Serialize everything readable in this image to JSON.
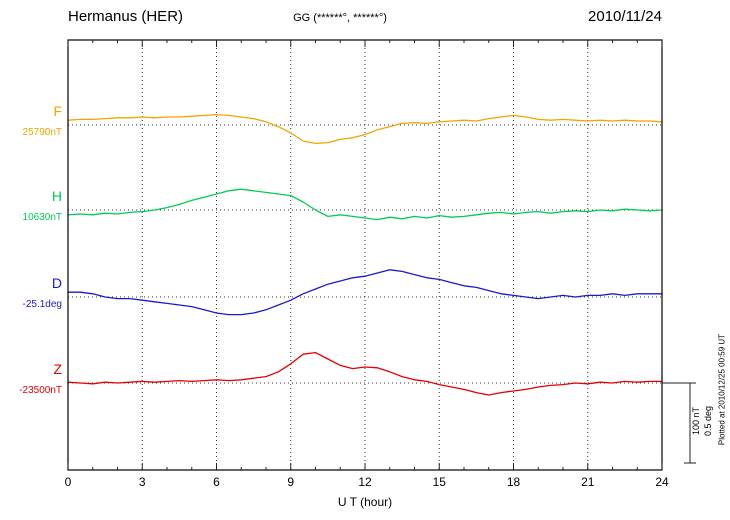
{
  "header": {
    "station": "Hermanus (HER)",
    "gg": "GG (******°, ******°)",
    "date": "2010/11/24"
  },
  "scalebar": {
    "nt": "100 nT",
    "deg": "0.5 deg"
  },
  "footer_note": "Plotted at 2010/12/25 00:59 UT",
  "chart_data": {
    "type": "line",
    "title": "Hermanus (HER) magnetogram",
    "xlabel": "U T (hour)",
    "x_range": [
      0,
      24
    ],
    "x_ticks": [
      0,
      3,
      6,
      9,
      12,
      15,
      18,
      21,
      24
    ],
    "x_minor_tick_step": 1,
    "grid": "dotted vertical lines every 3 h; dotted horizontal baseline per channel",
    "legend_position": "left margin channel labels",
    "values_are": "offsets from channel baseline, nT for F/H/Z and deg for D",
    "scale_reference": {
      "nT_per_bar": 100,
      "deg_per_bar": 0.5
    },
    "x": [
      0,
      0.5,
      1,
      1.5,
      2,
      2.5,
      3,
      3.5,
      4,
      4.5,
      5,
      5.5,
      6,
      6.5,
      7,
      7.5,
      8,
      8.5,
      9,
      9.5,
      10,
      10.5,
      11,
      11.5,
      12,
      12.5,
      13,
      13.5,
      14,
      14.5,
      15,
      15.5,
      16,
      16.5,
      17,
      17.5,
      18,
      18.5,
      19,
      19.5,
      20,
      20.5,
      21,
      21.5,
      22,
      22.5,
      23,
      23.5,
      24
    ],
    "series": [
      {
        "name": "F",
        "baseline_label": "25790nT",
        "baseline_value": 25790,
        "unit": "nT",
        "color": "#f2a400",
        "values": [
          6,
          7,
          7,
          8,
          9,
          9,
          10,
          9,
          10,
          10,
          11,
          12,
          13,
          12,
          10,
          8,
          4,
          -2,
          -10,
          -20,
          -23,
          -22,
          -18,
          -16,
          -12,
          -6,
          -2,
          2,
          3,
          2,
          4,
          5,
          6,
          5,
          8,
          10,
          12,
          10,
          7,
          6,
          7,
          6,
          5,
          6,
          5,
          6,
          5,
          5,
          4
        ]
      },
      {
        "name": "H",
        "baseline_label": "10630nT",
        "baseline_value": 10630,
        "unit": "nT",
        "color": "#00cc55",
        "values": [
          -6,
          -5,
          -6,
          -4,
          -5,
          -3,
          -2,
          0,
          3,
          7,
          12,
          16,
          20,
          24,
          26,
          24,
          22,
          20,
          18,
          10,
          0,
          -8,
          -6,
          -8,
          -10,
          -12,
          -9,
          -11,
          -8,
          -10,
          -7,
          -9,
          -8,
          -6,
          -4,
          -3,
          -5,
          -3,
          -2,
          -4,
          -2,
          -1,
          -2,
          0,
          -1,
          1,
          0,
          -1,
          0
        ]
      },
      {
        "name": "D",
        "baseline_label": "-25.1deg",
        "baseline_value": -25.1,
        "unit": "deg",
        "color": "#1a1acd",
        "values": [
          0.03,
          0.03,
          0.02,
          0,
          -0.01,
          -0.01,
          -0.02,
          -0.03,
          -0.04,
          -0.05,
          -0.06,
          -0.08,
          -0.1,
          -0.11,
          -0.11,
          -0.1,
          -0.08,
          -0.05,
          -0.02,
          0.02,
          0.05,
          0.08,
          0.1,
          0.12,
          0.13,
          0.15,
          0.17,
          0.16,
          0.14,
          0.12,
          0.11,
          0.09,
          0.07,
          0.06,
          0.04,
          0.02,
          0.01,
          0,
          -0.01,
          0,
          0.01,
          0,
          0.01,
          0.01,
          0.02,
          0.01,
          0.02,
          0.02,
          0.02
        ]
      },
      {
        "name": "Z",
        "baseline_label": "-23500nT",
        "baseline_value": -23500,
        "unit": "nT",
        "color": "#e60000",
        "values": [
          1,
          0,
          -1,
          1,
          0,
          1,
          2,
          1,
          2,
          3,
          2,
          3,
          4,
          3,
          4,
          6,
          8,
          14,
          24,
          36,
          38,
          30,
          22,
          18,
          20,
          19,
          14,
          8,
          4,
          2,
          -2,
          -5,
          -8,
          -12,
          -15,
          -12,
          -10,
          -8,
          -5,
          -3,
          -2,
          0,
          -1,
          1,
          0,
          2,
          1,
          2,
          2
        ]
      }
    ]
  }
}
